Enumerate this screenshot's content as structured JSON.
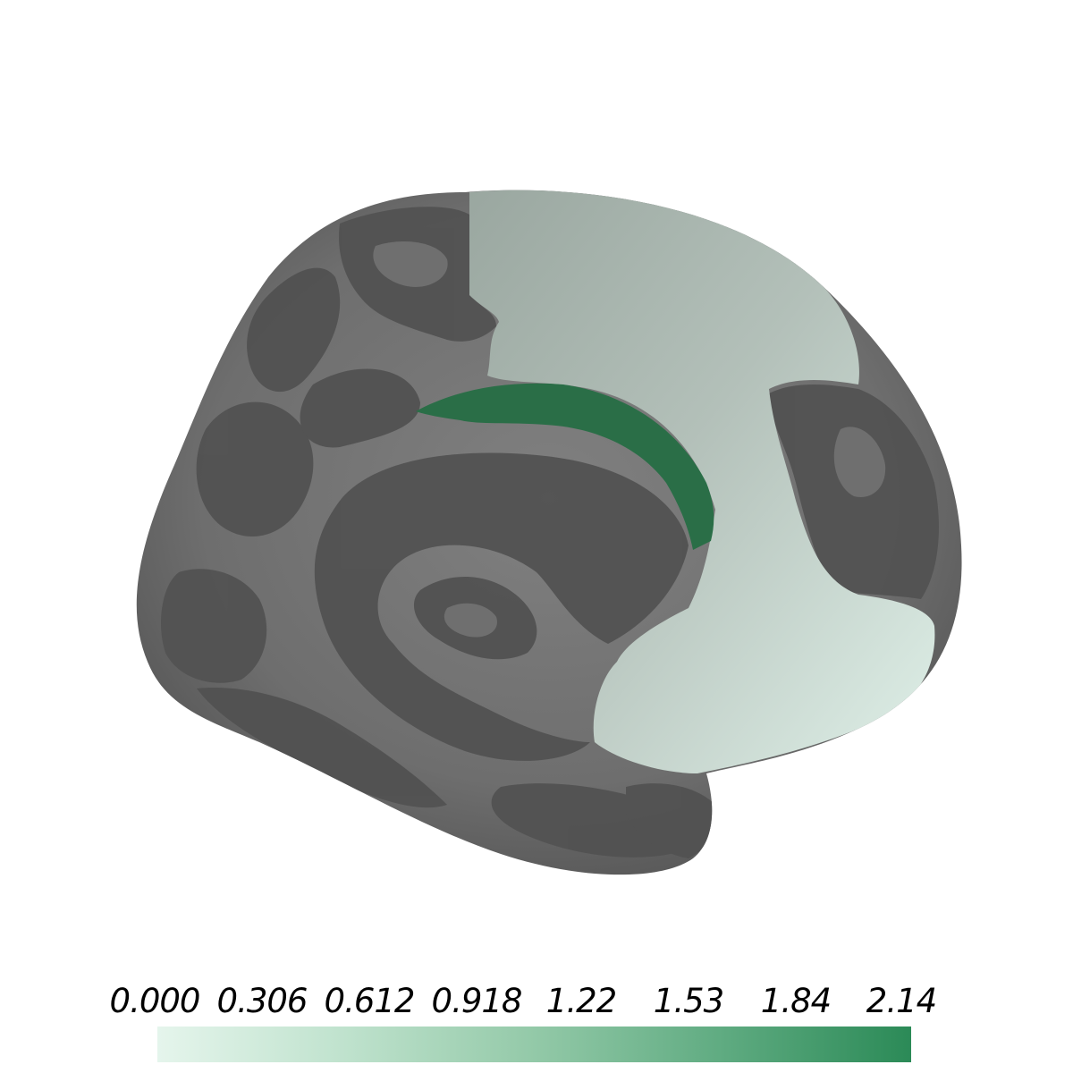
{
  "colorbar": {
    "ticks": [
      "0.000",
      "0.306",
      "0.612",
      "0.918",
      "1.22",
      "1.53",
      "1.84",
      "2.14"
    ],
    "min": 0.0,
    "max": 2.14,
    "colors": [
      "#e5f5ec",
      "#bfe2cd",
      "#93c9a8",
      "#5fab81",
      "#2b8a57"
    ]
  },
  "surface": {
    "base_light": "#7a7a7a",
    "base_dark": "#545454",
    "region_light": "#b7c4bd",
    "region_highlight": "#2a6e47"
  }
}
